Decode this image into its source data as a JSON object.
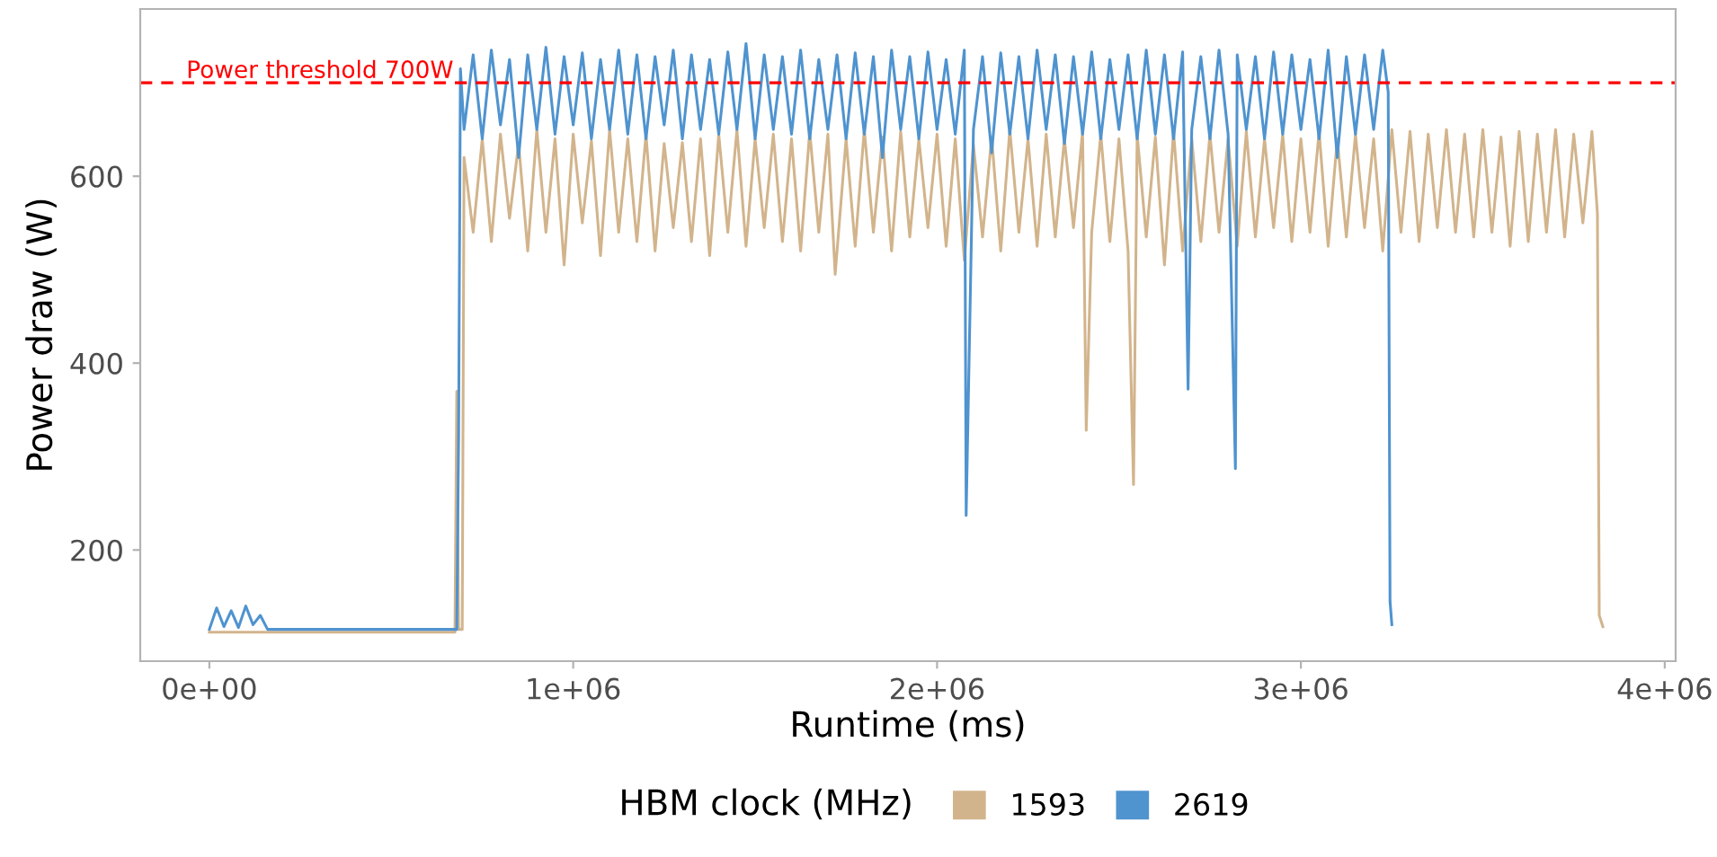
{
  "chart_data": {
    "type": "line",
    "xlabel": "Runtime (ms)",
    "ylabel": "Power draw (W)",
    "legend_title": "HBM clock (MHz)",
    "legend": "bottom",
    "grid": false,
    "marker": "none",
    "line_style": "solid",
    "xlim": [
      -190000,
      4030000
    ],
    "xticks": [
      {
        "value": 0,
        "label": "0e+00"
      },
      {
        "value": 1000000,
        "label": "1e+06"
      },
      {
        "value": 2000000,
        "label": "2e+06"
      },
      {
        "value": 3000000,
        "label": "3e+06"
      },
      {
        "value": 4000000,
        "label": "4e+06"
      }
    ],
    "ylim": [
      81,
      779
    ],
    "yticks": [
      200,
      400,
      600
    ],
    "ref_lines": [
      {
        "axis": "y",
        "value": 700,
        "label": "Power threshold 700W",
        "color": "#ff0000",
        "line_style": "dashed"
      }
    ],
    "series": [
      {
        "name": "1593",
        "color": "#d2b48c",
        "x": [
          0,
          100000,
          400000,
          675000,
          680000,
          685000,
          695000,
          700000,
          725000,
          750000,
          775000,
          800000,
          825000,
          850000,
          875000,
          900000,
          925000,
          950000,
          975000,
          1000000,
          1025000,
          1050000,
          1075000,
          1100000,
          1125000,
          1150000,
          1175000,
          1200000,
          1225000,
          1250000,
          1275000,
          1300000,
          1325000,
          1350000,
          1375000,
          1400000,
          1425000,
          1450000,
          1475000,
          1500000,
          1525000,
          1550000,
          1575000,
          1600000,
          1625000,
          1650000,
          1675000,
          1700000,
          1720000,
          1750000,
          1775000,
          1800000,
          1825000,
          1850000,
          1875000,
          1900000,
          1925000,
          1950000,
          1975000,
          2000000,
          2025000,
          2050000,
          2075000,
          2100000,
          2125000,
          2150000,
          2175000,
          2200000,
          2225000,
          2250000,
          2275000,
          2300000,
          2325000,
          2350000,
          2375000,
          2400000,
          2410000,
          2425000,
          2450000,
          2475000,
          2500000,
          2525000,
          2540000,
          2550000,
          2575000,
          2600000,
          2625000,
          2650000,
          2675000,
          2700000,
          2725000,
          2750000,
          2775000,
          2800000,
          2825000,
          2850000,
          2875000,
          2900000,
          2925000,
          2950000,
          2975000,
          3000000,
          3025000,
          3050000,
          3075000,
          3100000,
          3125000,
          3150000,
          3175000,
          3200000,
          3225000,
          3250000,
          3275000,
          3300000,
          3325000,
          3350000,
          3375000,
          3400000,
          3425000,
          3450000,
          3475000,
          3500000,
          3525000,
          3550000,
          3575000,
          3600000,
          3625000,
          3650000,
          3675000,
          3700000,
          3725000,
          3750000,
          3775000,
          3800000,
          3815000,
          3820000,
          3830000
        ],
        "values": [
          112,
          112,
          112,
          112,
          370,
          115,
          115,
          620,
          540,
          640,
          530,
          645,
          555,
          635,
          520,
          650,
          540,
          640,
          505,
          645,
          550,
          638,
          515,
          650,
          540,
          640,
          530,
          645,
          520,
          635,
          545,
          636,
          530,
          640,
          515,
          645,
          540,
          650,
          525,
          640,
          545,
          645,
          530,
          640,
          520,
          648,
          540,
          645,
          495,
          640,
          525,
          650,
          540,
          642,
          520,
          648,
          535,
          640,
          545,
          645,
          525,
          640,
          510,
          634,
          535,
          642,
          520,
          650,
          540,
          640,
          525,
          645,
          535,
          640,
          545,
          648,
          328,
          540,
          645,
          530,
          640,
          520,
          270,
          645,
          535,
          642,
          505,
          648,
          520,
          640,
          530,
          645,
          540,
          640,
          525,
          648,
          535,
          640,
          545,
          645,
          530,
          640,
          540,
          648,
          525,
          640,
          535,
          645,
          545,
          640,
          520,
          650,
          540,
          648,
          530,
          645,
          545,
          650,
          540,
          645,
          535,
          650,
          540,
          642,
          525,
          648,
          530,
          645,
          540,
          650,
          535,
          645,
          550,
          648,
          560,
          130,
          118
        ]
      },
      {
        "name": "2619",
        "color": "#4f93cf",
        "x": [
          0,
          20000,
          40000,
          60000,
          80000,
          100000,
          120000,
          140000,
          160000,
          400000,
          680000,
          685000,
          690000,
          700000,
          725000,
          750000,
          775000,
          800000,
          825000,
          850000,
          875000,
          900000,
          925000,
          950000,
          975000,
          1000000,
          1025000,
          1050000,
          1075000,
          1100000,
          1125000,
          1150000,
          1175000,
          1200000,
          1225000,
          1250000,
          1275000,
          1300000,
          1325000,
          1350000,
          1375000,
          1400000,
          1425000,
          1450000,
          1475000,
          1500000,
          1525000,
          1550000,
          1575000,
          1600000,
          1625000,
          1650000,
          1675000,
          1700000,
          1725000,
          1750000,
          1775000,
          1800000,
          1825000,
          1850000,
          1875000,
          1900000,
          1925000,
          1950000,
          1975000,
          2000000,
          2025000,
          2050000,
          2075000,
          2080000,
          2100000,
          2125000,
          2150000,
          2175000,
          2200000,
          2225000,
          2250000,
          2275000,
          2300000,
          2325000,
          2350000,
          2375000,
          2400000,
          2425000,
          2450000,
          2475000,
          2500000,
          2525000,
          2550000,
          2575000,
          2600000,
          2625000,
          2650000,
          2675000,
          2690000,
          2700000,
          2725000,
          2750000,
          2775000,
          2800000,
          2820000,
          2825000,
          2850000,
          2875000,
          2900000,
          2925000,
          2950000,
          2975000,
          3000000,
          3025000,
          3050000,
          3075000,
          3100000,
          3125000,
          3150000,
          3175000,
          3200000,
          3225000,
          3240000,
          3245000,
          3250000
        ],
        "values": [
          115,
          138,
          118,
          135,
          117,
          140,
          120,
          130,
          115,
          115,
          115,
          320,
          715,
          650,
          730,
          640,
          735,
          655,
          725,
          620,
          730,
          650,
          738,
          645,
          728,
          655,
          732,
          640,
          725,
          650,
          735,
          645,
          730,
          640,
          728,
          655,
          735,
          640,
          730,
          650,
          725,
          645,
          733,
          650,
          742,
          640,
          730,
          650,
          728,
          645,
          735,
          640,
          725,
          650,
          730,
          640,
          732,
          645,
          728,
          620,
          735,
          650,
          728,
          640,
          733,
          650,
          725,
          645,
          735,
          237,
          650,
          728,
          625,
          732,
          645,
          728,
          640,
          735,
          650,
          730,
          635,
          728,
          645,
          733,
          640,
          725,
          650,
          730,
          640,
          735,
          645,
          730,
          640,
          733,
          372,
          650,
          728,
          640,
          735,
          645,
          287,
          730,
          650,
          728,
          640,
          733,
          645,
          730,
          650,
          725,
          640,
          735,
          620,
          728,
          645,
          730,
          650,
          735,
          690,
          145,
          120
        ]
      }
    ]
  }
}
